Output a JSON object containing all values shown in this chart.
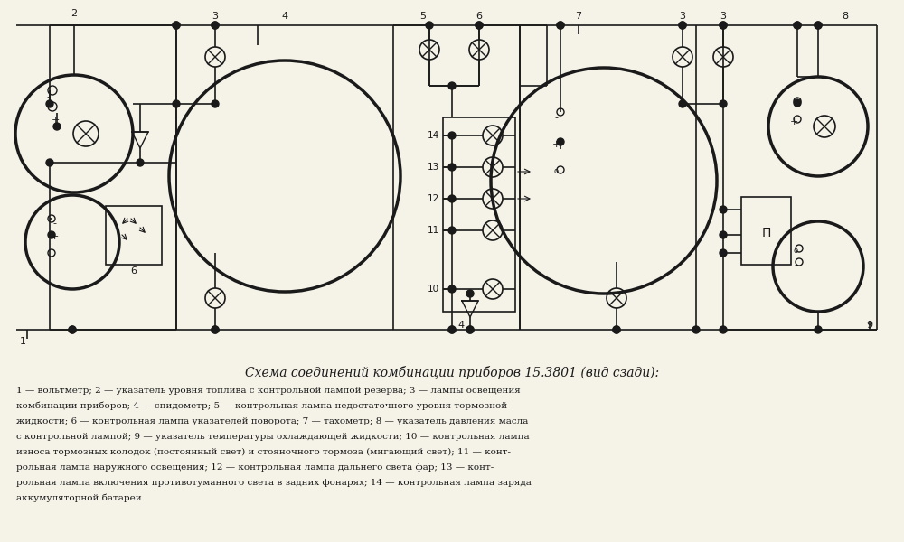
{
  "title": "Схема соединений комбинации приборов 15.3801 (вид сзади):",
  "caption_lines": [
    "1 — вольтметр; 2 — указатель уровня топлива с контрольной лампой резерва; 3 — лампы освещения",
    "комбинации приборов; 4 — спидометр; 5 — контрольная лампа недостаточного уровня тормозной",
    "жидкости; 6 — контрольная лампа указателей поворота; 7 — тахометр; 8 — указатель давления масла",
    "с контрольной лампой; 9 — указатель температуры охлаждающей жидкости; 10 — контрольная лампа",
    "износа тормозных колодок (постоянный свет) и стояночного тормоза (мигающий свет); 11 — конт-",
    "рольная лампа наружного освещения; 12 — контрольная лампа дальнего света фар; 13 — конт-",
    "рольная лампа включения противотуманного света в задних фонарях; 14 — контрольная лампа заряда",
    "аккумуляторной батареи"
  ],
  "bg_color": "#f5f2e8",
  "line_color": "#1a1a1a"
}
